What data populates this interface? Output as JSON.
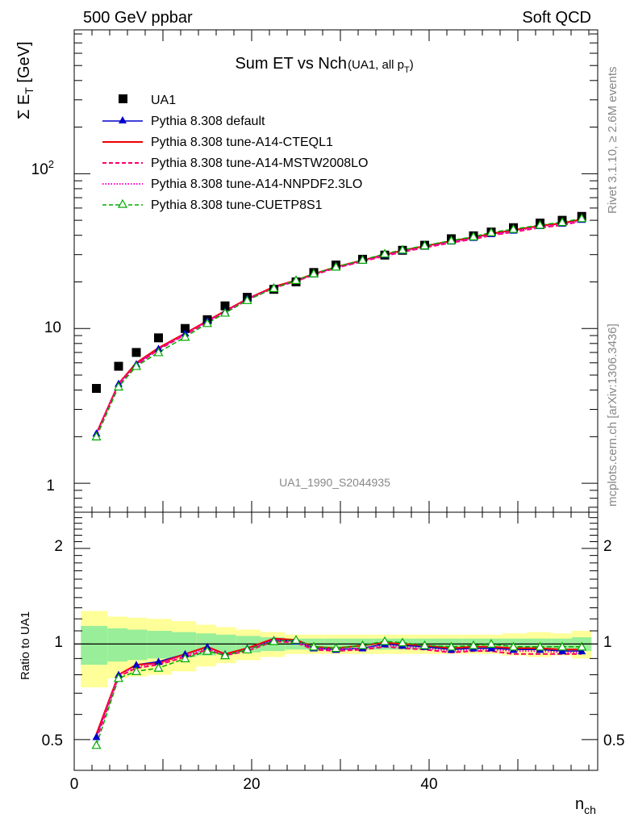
{
  "header": {
    "left": "500 GeV ppbar",
    "right": "Soft QCD"
  },
  "side_labels": {
    "rivet": "Rivet 3.1.10, ≥ 2.6M events",
    "mcplots": "mcplots.cern.ch [arXiv:1306.3436]"
  },
  "chart_data": {
    "type": "line",
    "title": "Sum ET vs Nch",
    "title_suffix": "(UA1, all p",
    "title_sub": "T",
    "title_close": ")",
    "analysis_id": "UA1_1990_S2044935",
    "xlabel": "n",
    "xlabel_sub": "ch",
    "ylabel": "Σ E",
    "ylabel_sub": "T",
    "ylabel_unit": " [GeV]",
    "ratio_ylabel": "Ratio to UA1",
    "x_ticks": [
      "0",
      "20",
      "40"
    ],
    "y_ticks_main": [
      "1",
      "10",
      "10"
    ],
    "y_tick_exp": "2",
    "y_ticks_ratio": [
      "0.5",
      "1",
      "2"
    ],
    "xlim": [
      0,
      59
    ],
    "ylim_main": [
      0.65,
      850
    ],
    "ylim_ratio": [
      0.4,
      2.6
    ],
    "x": [
      2.5,
      5,
      7,
      9.5,
      12.5,
      15,
      17,
      19.5,
      22.5,
      25,
      27,
      29.5,
      32.5,
      35,
      37,
      39.5,
      42.5,
      45,
      47,
      49.5,
      52.5,
      55,
      57.2
    ],
    "data": {
      "name": "UA1",
      "values": [
        4.1,
        5.7,
        7.0,
        8.7,
        10.0,
        11.4,
        14.0,
        15.9,
        17.9,
        20.0,
        23.0,
        25.7,
        28.0,
        29.8,
        32.0,
        34.5,
        38.0,
        39.7,
        42.0,
        44.8,
        48.0,
        50.0,
        53.0
      ],
      "unc_inner": [
        0.14,
        0.12,
        0.11,
        0.1,
        0.09,
        0.08,
        0.07,
        0.06,
        0.05,
        0.04,
        0.04,
        0.04,
        0.04,
        0.04,
        0.04,
        0.04,
        0.04,
        0.04,
        0.04,
        0.04,
        0.04,
        0.04,
        0.05
      ],
      "unc_outer": [
        0.27,
        0.22,
        0.21,
        0.2,
        0.18,
        0.15,
        0.13,
        0.11,
        0.09,
        0.07,
        0.07,
        0.07,
        0.07,
        0.07,
        0.07,
        0.07,
        0.07,
        0.07,
        0.07,
        0.08,
        0.09,
        0.08,
        0.1
      ]
    },
    "series": [
      {
        "name": "Pythia 8.308 default",
        "color": "#0000cc",
        "style": "solid-triangle",
        "values": [
          2.1,
          4.4,
          5.9,
          7.4,
          9.3,
          11.2,
          12.9,
          15.6,
          18.5,
          20.4,
          22.4,
          24.9,
          27.5,
          30.0,
          31.8,
          34.0,
          36.6,
          38.6,
          40.8,
          43.0,
          46.0,
          47.7,
          50.5
        ],
        "ratio": [
          0.51,
          0.8,
          0.86,
          0.88,
          0.93,
          0.98,
          0.93,
          0.97,
          1.03,
          1.02,
          0.97,
          0.96,
          0.97,
          1.0,
          0.99,
          0.98,
          0.96,
          0.97,
          0.97,
          0.96,
          0.96,
          0.95,
          0.95
        ]
      },
      {
        "name": "Pythia 8.308 tune-A14-CTEQL1",
        "color": "#ee0000",
        "style": "solid",
        "values": [
          2.1,
          4.4,
          6.0,
          7.5,
          9.3,
          11.2,
          13.0,
          15.5,
          18.6,
          20.5,
          22.5,
          25.0,
          27.6,
          30.0,
          31.9,
          34.1,
          36.7,
          38.8,
          41.0,
          43.2,
          46.1,
          47.9,
          50.8
        ],
        "ratio": [
          0.52,
          0.8,
          0.86,
          0.87,
          0.93,
          0.98,
          0.93,
          0.97,
          1.04,
          1.03,
          0.98,
          0.97,
          0.99,
          1.01,
          1.0,
          0.99,
          0.97,
          0.98,
          0.98,
          0.97,
          0.97,
          0.96,
          0.96
        ]
      },
      {
        "name": "Pythia 8.308 tune-A14-MSTW2008LO",
        "color": "#ff0066",
        "style": "dashed",
        "values": [
          2.0,
          4.3,
          5.8,
          7.3,
          9.1,
          11.0,
          12.7,
          15.3,
          18.3,
          20.2,
          22.2,
          24.6,
          27.1,
          29.4,
          31.2,
          33.3,
          35.8,
          37.8,
          39.9,
          42.0,
          44.8,
          46.5,
          49.3
        ],
        "ratio": [
          0.5,
          0.79,
          0.84,
          0.86,
          0.91,
          0.96,
          0.92,
          0.95,
          1.02,
          1.01,
          0.96,
          0.95,
          0.96,
          0.98,
          0.97,
          0.96,
          0.94,
          0.95,
          0.95,
          0.93,
          0.93,
          0.93,
          0.93
        ]
      },
      {
        "name": "Pythia 8.308 tune-A14-NNPDF2.3LO",
        "color": "#ff00cc",
        "style": "dotted",
        "values": [
          2.1,
          4.4,
          5.9,
          7.4,
          9.2,
          11.1,
          12.9,
          15.4,
          18.4,
          20.3,
          22.3,
          24.8,
          27.3,
          29.7,
          31.5,
          33.7,
          36.2,
          38.2,
          40.4,
          42.5,
          45.4,
          47.1,
          49.9
        ],
        "ratio": [
          0.51,
          0.8,
          0.85,
          0.87,
          0.92,
          0.97,
          0.92,
          0.96,
          1.03,
          1.02,
          0.97,
          0.96,
          0.97,
          0.99,
          0.98,
          0.97,
          0.95,
          0.96,
          0.96,
          0.95,
          0.95,
          0.94,
          0.94
        ]
      },
      {
        "name": "Pythia 8.308 tune-CUETP8S1",
        "color": "#00aa00",
        "style": "dashed-open-triangle",
        "values": [
          2.0,
          4.2,
          5.7,
          7.0,
          8.8,
          10.8,
          12.6,
          15.2,
          18.2,
          20.5,
          22.6,
          25.0,
          27.7,
          30.4,
          32.2,
          34.3,
          37.0,
          39.2,
          41.7,
          43.8,
          46.6,
          48.6,
          51.4
        ],
        "ratio": [
          0.48,
          0.78,
          0.82,
          0.84,
          0.9,
          0.95,
          0.92,
          0.96,
          1.02,
          1.03,
          0.98,
          0.97,
          0.99,
          1.02,
          1.01,
          0.99,
          0.98,
          0.99,
          1.0,
          0.98,
          0.98,
          0.98,
          0.98
        ]
      }
    ]
  }
}
